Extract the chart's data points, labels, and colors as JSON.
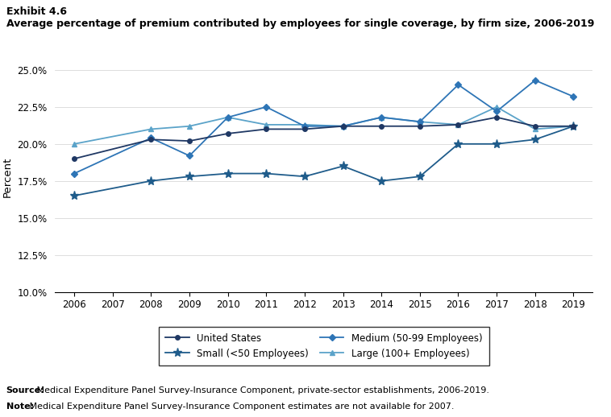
{
  "title_line1": "Exhibit 4.6",
  "title_line2": "Average percentage of premium contributed by employees for single coverage, by firm size, 2006-2019",
  "years": [
    2006,
    2008,
    2009,
    2010,
    2011,
    2012,
    2013,
    2014,
    2015,
    2016,
    2017,
    2018,
    2019
  ],
  "united_states": [
    19.0,
    20.3,
    20.2,
    20.7,
    21.0,
    21.0,
    21.2,
    21.2,
    21.2,
    21.3,
    21.8,
    21.2,
    21.2
  ],
  "small_lt50": [
    16.5,
    17.5,
    17.8,
    18.0,
    18.0,
    17.8,
    18.5,
    17.5,
    17.8,
    20.0,
    20.0,
    20.3,
    21.2
  ],
  "medium_50_99": [
    18.0,
    20.4,
    19.2,
    21.8,
    22.5,
    21.2,
    21.2,
    21.8,
    21.5,
    24.0,
    22.2,
    24.3,
    23.2
  ],
  "large_100plus": [
    20.0,
    21.0,
    21.2,
    21.8,
    21.3,
    21.3,
    21.2,
    21.8,
    21.5,
    21.3,
    22.5,
    21.0,
    21.2
  ],
  "ylim_min": 10.0,
  "ylim_max": 25.5,
  "yticks": [
    10.0,
    12.5,
    15.0,
    17.5,
    20.0,
    22.5,
    25.0
  ],
  "ylabel": "Percent",
  "color_us": "#1f3864",
  "color_small": "#1f5c8b",
  "color_medium": "#2e75b6",
  "color_large": "#5ba3c9",
  "source_bold": "Source:",
  "source_rest": " Medical Expenditure Panel Survey-Insurance Component, private-sector establishments, 2006-2019.",
  "note_bold": "Note:",
  "note_rest": " Medical Expenditure Panel Survey-Insurance Component estimates are not available for 2007.",
  "legend_col1_row1": "United States",
  "legend_col2_row1": "Small (<50 Employees)",
  "legend_col1_row2": "Medium (50-99 Employees)",
  "legend_col2_row2": "Large (100+ Employees)"
}
